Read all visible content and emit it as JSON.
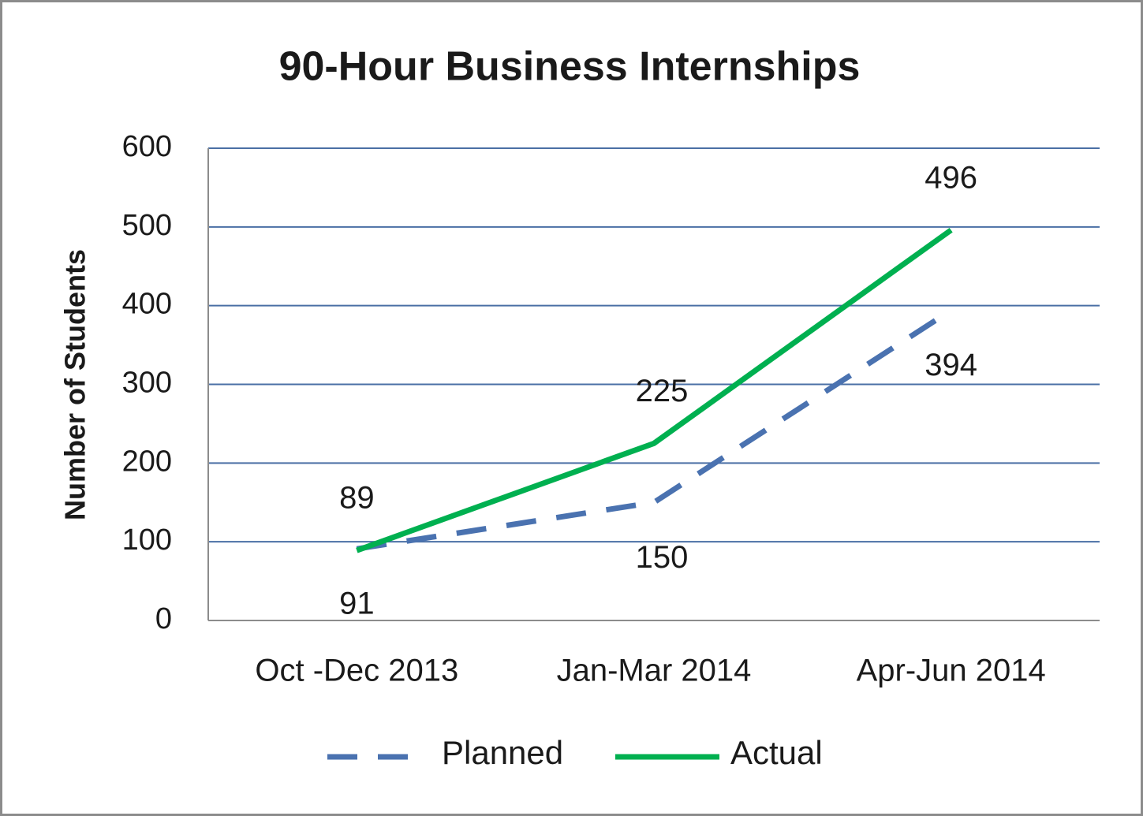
{
  "chart_data": {
    "type": "line",
    "title": "90-Hour Business Internships",
    "ylabel": "Number of Students",
    "categories": [
      "Oct -Dec 2013",
      "Jan-Mar 2014",
      "Apr-Jun 2014"
    ],
    "series": [
      {
        "name": "Planned",
        "color": "#4a72b0",
        "dashed": true,
        "values": [
          91,
          150,
          394
        ]
      },
      {
        "name": "Actual",
        "color": "#00b050",
        "dashed": false,
        "values": [
          89,
          225,
          496
        ]
      }
    ],
    "ylim": [
      0,
      600
    ],
    "yticks": [
      0,
      100,
      200,
      300,
      400,
      500,
      600
    ],
    "grid": true,
    "legend": "bottom"
  }
}
